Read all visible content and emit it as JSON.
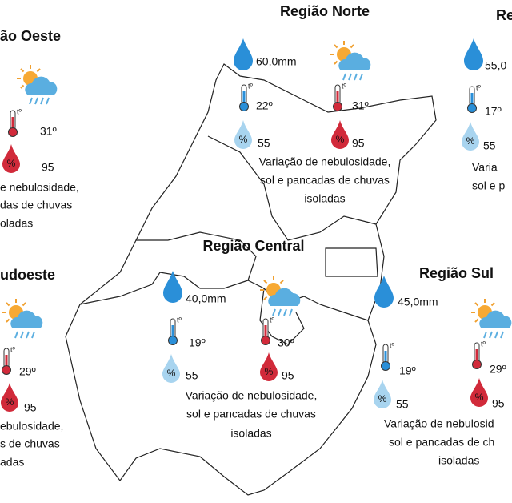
{
  "icon_labels": {
    "temperature": "tº",
    "humidity": "%"
  },
  "regions": [
    {
      "title": "ão Oeste",
      "temperatures": [
        "31º"
      ],
      "humidity": [
        "95"
      ],
      "description": [
        "e nebulosidade,",
        "das de chuvas",
        "oladas"
      ]
    },
    {
      "title": "Região Norte",
      "rain": "60,0mm",
      "temperatures": [
        "22º",
        "31º"
      ],
      "humidity": [
        "55",
        "95"
      ],
      "description": [
        "Variação de nebulosidade,",
        "sol e pancadas de chuvas",
        "isoladas"
      ]
    },
    {
      "title": "Re",
      "rain": "55,0",
      "temperatures": [
        "17º"
      ],
      "humidity": [
        "55"
      ],
      "description": [
        "Varia",
        "sol e p"
      ]
    },
    {
      "title": "udoeste",
      "temperatures": [
        "29º"
      ],
      "humidity": [
        "95"
      ],
      "description": [
        "ebulosidade,",
        "s de chuvas",
        "adas"
      ]
    },
    {
      "title": "Região Central",
      "rain": "40,0mm",
      "temperatures": [
        "19º",
        "30º"
      ],
      "humidity": [
        "55",
        "95"
      ],
      "description": [
        "Variação de nebulosidade,",
        "sol e pancadas de chuvas",
        "isoladas"
      ]
    },
    {
      "title": "Região Sul",
      "rain": "45,0mm",
      "temperatures": [
        "19º",
        "29º"
      ],
      "humidity": [
        "55",
        "95"
      ],
      "description": [
        "Variação de nebulosid",
        "sol e pancadas de ch",
        "isoladas"
      ]
    }
  ]
}
